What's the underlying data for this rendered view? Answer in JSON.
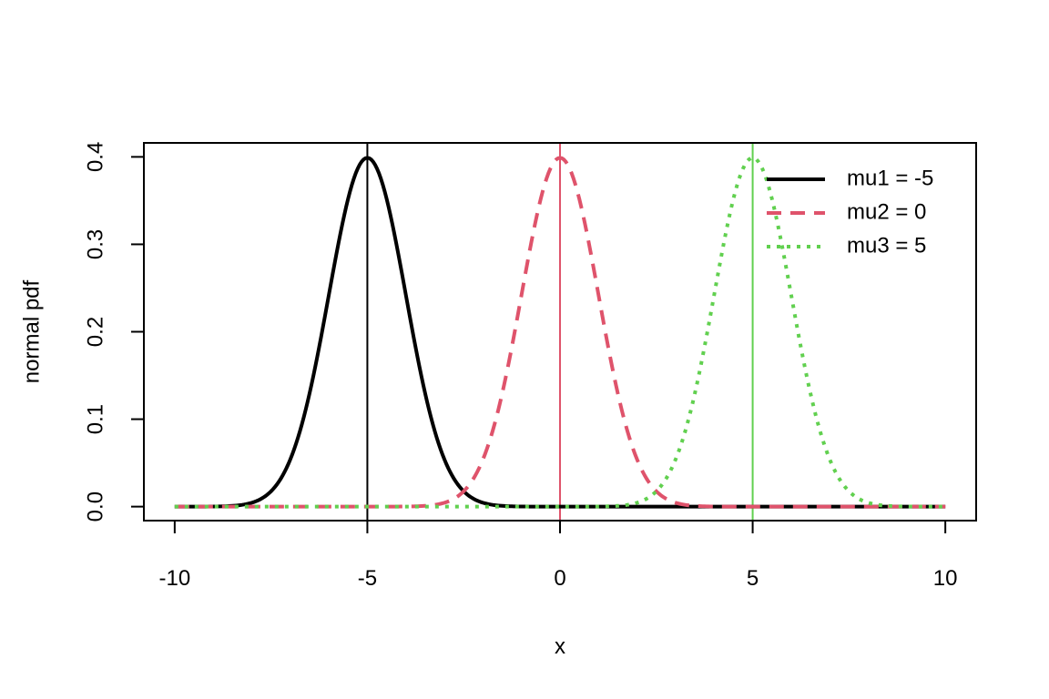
{
  "colors": {
    "axis": "#000000",
    "mu1": "#000000",
    "mu2": "#DF536B",
    "mu3": "#61D04F"
  },
  "chart_data": {
    "type": "line",
    "title": "",
    "xlabel": "x",
    "ylabel": "normal pdf",
    "xlim": [
      -10.8,
      10.8
    ],
    "ylim": [
      -0.016,
      0.416
    ],
    "x_ticks": [
      -10,
      -5,
      0,
      5,
      10
    ],
    "x_tick_labels": [
      "-10",
      "-5",
      "0",
      "5",
      "10"
    ],
    "y_ticks": [
      0,
      0.1,
      0.2,
      0.3,
      0.4
    ],
    "y_tick_labels": [
      "0.0",
      "0.1",
      "0.2",
      "0.3",
      "0.4"
    ],
    "grid": false,
    "legend_position": "top-right",
    "legend_boxed": false,
    "x_range": [
      -10,
      10
    ],
    "series": [
      {
        "name": "mu1 = -5",
        "mean": -5,
        "sd": 1,
        "color": "#000000",
        "line_style": "solid",
        "vline_x": -5
      },
      {
        "name": "mu2 = 0",
        "mean": 0,
        "sd": 1,
        "color": "#DF536B",
        "line_style": "dashed",
        "vline_x": 0
      },
      {
        "name": "mu3 = 5",
        "mean": 5,
        "sd": 1,
        "color": "#61D04F",
        "line_style": "dotted",
        "vline_x": 5
      }
    ]
  }
}
